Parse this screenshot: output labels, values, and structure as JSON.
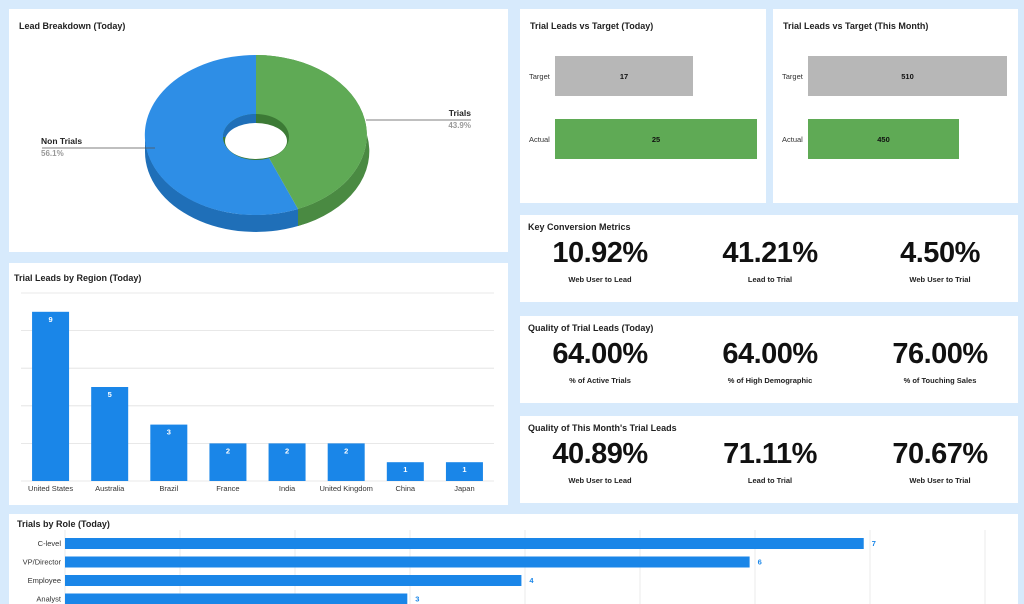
{
  "lead_breakdown": {
    "title": "Lead Breakdown (Today)",
    "slices": [
      {
        "label": "Non Trials",
        "percent_label": "56.1%",
        "value": 56.1,
        "color": "#2e8ee6"
      },
      {
        "label": "Trials",
        "percent_label": "43.9%",
        "value": 43.9,
        "color": "#5faa55"
      }
    ]
  },
  "target_today": {
    "title": "Trial Leads vs Target (Today)",
    "target_label": "Target",
    "target_value": "17",
    "actual_label": "Actual",
    "actual_value": "25"
  },
  "target_month": {
    "title": "Trial Leads vs Target (This Month)",
    "target_label": "Target",
    "target_value": "510",
    "actual_label": "Actual",
    "actual_value": "450"
  },
  "key_conversion": {
    "title": "Key Conversion Metrics",
    "metrics": [
      {
        "value": "10.92%",
        "label": "Web User to Lead"
      },
      {
        "value": "41.21%",
        "label": "Lead to Trial"
      },
      {
        "value": "4.50%",
        "label": "Web User to Trial"
      }
    ]
  },
  "quality_today": {
    "title": "Quality of Trial Leads (Today)",
    "metrics": [
      {
        "value": "64.00%",
        "label": "% of Active Trials"
      },
      {
        "value": "64.00%",
        "label": "% of High Demographic"
      },
      {
        "value": "76.00%",
        "label": "% of Touching Sales"
      }
    ]
  },
  "quality_month": {
    "title": "Quality of This Month's Trial Leads",
    "metrics": [
      {
        "value": "40.89%",
        "label": "Web User to Lead"
      },
      {
        "value": "71.11%",
        "label": "Lead to Trial"
      },
      {
        "value": "70.67%",
        "label": "Web User to Trial"
      }
    ]
  },
  "region": {
    "title": "Trial Leads by Region (Today)"
  },
  "role": {
    "title": "Trials by Role (Today)"
  },
  "chart_data": [
    {
      "type": "pie",
      "title": "Lead Breakdown (Today)",
      "categories": [
        "Non Trials",
        "Trials"
      ],
      "values": [
        56.1,
        43.9
      ]
    },
    {
      "type": "bar",
      "title": "Trial Leads vs Target (Today)",
      "categories": [
        "Target",
        "Actual"
      ],
      "values": [
        17,
        25
      ]
    },
    {
      "type": "bar",
      "title": "Trial Leads vs Target (This Month)",
      "categories": [
        "Target",
        "Actual"
      ],
      "values": [
        510,
        450
      ]
    },
    {
      "type": "bar",
      "title": "Trial Leads by Region (Today)",
      "categories": [
        "United States",
        "Australia",
        "Brazil",
        "France",
        "India",
        "United Kingdom",
        "China",
        "Japan"
      ],
      "values": [
        9,
        5,
        3,
        2,
        2,
        2,
        1,
        1
      ],
      "ylim": [
        0,
        10
      ]
    },
    {
      "type": "bar",
      "title": "Trials by Role (Today)",
      "categories": [
        "C-level",
        "VP/Director",
        "Employee",
        "Analyst"
      ],
      "values": [
        7,
        6,
        4,
        3
      ]
    }
  ]
}
